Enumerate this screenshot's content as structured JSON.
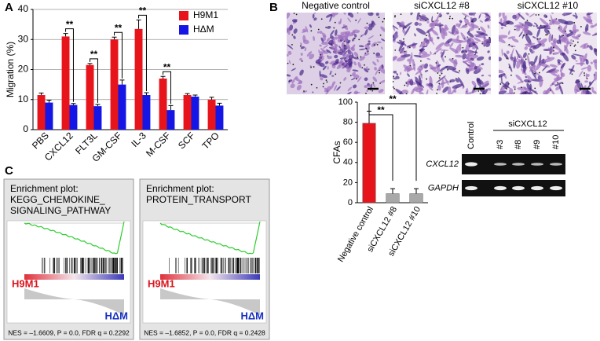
{
  "panel_labels": [
    "A",
    "B",
    "C"
  ],
  "chart_data": [
    {
      "type": "bar",
      "y_label": "Migration (%)",
      "categories": [
        "PBS",
        "CXCL12",
        "FLT3L",
        "GM-CSF",
        "IL-3",
        "M-CSF",
        "SCF",
        "TPO"
      ],
      "series": [
        {
          "name": "H9M1",
          "color": "#e8141c",
          "values": [
            11.5,
            31,
            21.5,
            30,
            33.5,
            17,
            11.5,
            10
          ],
          "errors": [
            0.7,
            1,
            0.5,
            0.8,
            3,
            0.7,
            0.5,
            0.8
          ]
        },
        {
          "name": "HΔM",
          "color": "#1515e6",
          "values": [
            9,
            8.2,
            7.8,
            15,
            11.5,
            6.5,
            11,
            8
          ],
          "errors": [
            0.8,
            0.5,
            0.6,
            1.5,
            0.8,
            1.5,
            0.5,
            0.8
          ]
        }
      ],
      "annotations": [
        {
          "label": "**",
          "category": "CXCL12"
        },
        {
          "label": "**",
          "category": "FLT3L"
        },
        {
          "label": "**",
          "category": "GM-CSF"
        },
        {
          "label": "**",
          "category": "IL-3"
        },
        {
          "label": "**",
          "category": "M-CSF"
        }
      ],
      "ylim": [
        0,
        40
      ],
      "yticks": [
        0,
        10,
        20,
        30,
        40
      ],
      "grid": true,
      "legend": "upper right"
    },
    {
      "type": "bar",
      "y_label": "CFAs",
      "categories": [
        "Negative control",
        "siCXCL12 #8",
        "siCXCL12 #10"
      ],
      "values": [
        79,
        9,
        9
      ],
      "errors": [
        12,
        5,
        5
      ],
      "colors": [
        "#e8141c",
        "#a8a8a8",
        "#a8a8a8"
      ],
      "annotations": [
        {
          "label": "**",
          "from": "Negative control",
          "to": "siCXCL12 #8"
        },
        {
          "label": "**",
          "from": "Negative control",
          "to": "siCXCL12 #10"
        }
      ],
      "ylim": [
        0,
        100
      ],
      "yticks": [
        0,
        20,
        40,
        60,
        80,
        100
      ],
      "grid": false
    }
  ],
  "micrographs": [
    "Negative control",
    "siCXCL12 #8",
    "siCXCL12 #10"
  ],
  "gel": {
    "lanes": [
      "Control",
      "#3",
      "#8",
      "#9",
      "#10"
    ],
    "group_label": "siCXCL12",
    "rows": [
      "CXCL12",
      "GAPDH"
    ]
  },
  "enrichment_plots": [
    {
      "heading": "Enrichment plot:",
      "title": [
        "KEGG_CHEMOKINE_",
        "SIGNALING_PATHWAY"
      ],
      "left_label": "H9M1",
      "right_label": "HΔM",
      "stats": "NES = –1.6609, P = 0.0, FDR q = 0.2292"
    },
    {
      "heading": "Enrichment plot:",
      "title": [
        "PROTEIN_TRANSPORT"
      ],
      "left_label": "H9M1",
      "right_label": "HΔM",
      "stats": "NES = –1.6852, P = 0.0, FDR q = 0.2428"
    }
  ]
}
